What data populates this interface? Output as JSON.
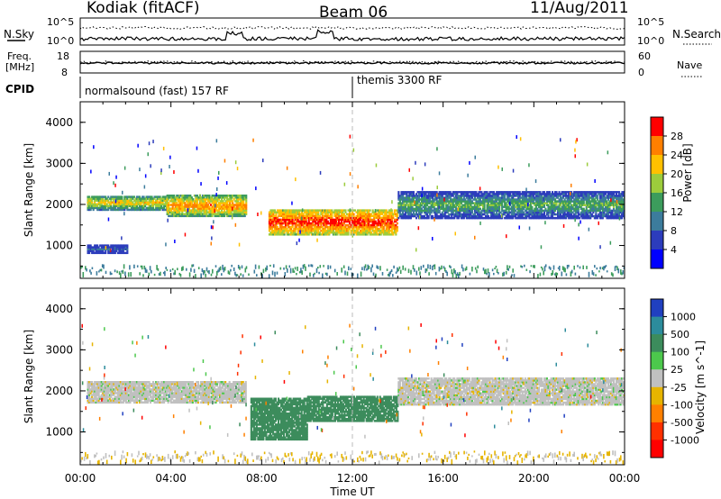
{
  "header": {
    "station": "Kodiak (fitACF)",
    "beam": "Beam 06",
    "date": "11/Aug/2011"
  },
  "summary": {
    "nsky_label": "N.Sky",
    "nsky_ticks": [
      "10^5",
      "10^0"
    ],
    "nsearch_label": "N.Search",
    "nsearch_ticks": [
      "10^5",
      "10^0"
    ],
    "freq_label": "Freq.",
    "freq_unit": "[MHz]",
    "freq_ticks": [
      "18",
      "8"
    ],
    "nave_label": "Nave",
    "nave_ticks": [
      "60",
      "0"
    ],
    "cpid_label": "CPID",
    "cpid_segments": [
      {
        "start_hour": 0,
        "label": "normalsound (fast) 157 RF"
      },
      {
        "start_hour": 12,
        "label": "themis 3300 RF"
      }
    ]
  },
  "chart_data": [
    {
      "type": "heatmap",
      "title": "",
      "xlabel": "Time UT",
      "ylabel": "Slant Range [km]",
      "xlim": [
        0,
        24
      ],
      "xticks": [
        "00:00",
        "04:00",
        "08:00",
        "12:00",
        "16:00",
        "20:00",
        "00:00"
      ],
      "ylim": [
        200,
        4500
      ],
      "yticks": [
        1000,
        2000,
        3000,
        4000
      ],
      "colorbar": {
        "label": "Power [dB]",
        "ticks": [
          "28",
          "24",
          "20",
          "16",
          "12",
          "8",
          "4"
        ],
        "colors": [
          "#ff0000",
          "#ff7f00",
          "#ffc000",
          "#9ccc3c",
          "#3c9c5c",
          "#3c7c9c",
          "#2c3cbc",
          "#0000ff"
        ]
      },
      "echo_bands": [
        {
          "t_start": 0.3,
          "t_end": 3.8,
          "r_low": 1850,
          "r_high": 2200,
          "level": 20
        },
        {
          "t_start": 3.8,
          "t_end": 7.3,
          "r_low": 1700,
          "r_high": 2200,
          "level": 24
        },
        {
          "t_start": 8.3,
          "t_end": 14.0,
          "r_low": 1250,
          "r_high": 1850,
          "level": 28
        },
        {
          "t_start": 14.0,
          "t_end": 24.0,
          "r_low": 1650,
          "r_high": 2300,
          "level": 14
        },
        {
          "t_start": 0.3,
          "t_end": 2.1,
          "r_low": 800,
          "r_high": 1000,
          "level": 8
        }
      ]
    },
    {
      "type": "heatmap",
      "title": "",
      "xlabel": "Time UT",
      "ylabel": "Slant Range [km]",
      "xlim": [
        0,
        24
      ],
      "xticks": [
        "00:00",
        "04:00",
        "08:00",
        "12:00",
        "16:00",
        "20:00",
        "00:00"
      ],
      "ylim": [
        200,
        4500
      ],
      "yticks": [
        1000,
        2000,
        3000,
        4000
      ],
      "colorbar": {
        "label": "Velocity [m s^-1]",
        "ticks": [
          "1000",
          "500",
          "100",
          "25",
          "-25",
          "-100",
          "-500",
          "-1000"
        ],
        "colors": [
          "#2040c0",
          "#2c8c9c",
          "#3c8c5c",
          "#4cc84c",
          "#c0c0c0",
          "#e6b400",
          "#ff8000",
          "#ff3000",
          "#ff0000"
        ]
      },
      "echo_bands": [
        {
          "t_start": 0.3,
          "t_end": 7.3,
          "r_low": 1700,
          "r_high": 2200,
          "level": 0
        },
        {
          "t_start": 7.5,
          "t_end": 10.0,
          "r_low": 800,
          "r_high": 1800,
          "level": 100
        },
        {
          "t_start": 10.0,
          "t_end": 14.0,
          "r_low": 1250,
          "r_high": 1850,
          "level": 200
        },
        {
          "t_start": 14.0,
          "t_end": 24.0,
          "r_low": 1650,
          "r_high": 2300,
          "level": 0
        }
      ]
    }
  ]
}
